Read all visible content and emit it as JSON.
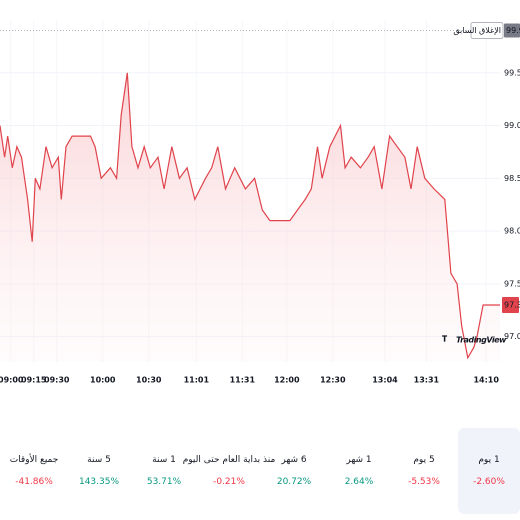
{
  "chart_data": {
    "type": "line",
    "x": [
      533,
      536,
      538,
      541,
      544,
      547,
      551,
      554,
      556,
      559,
      563,
      567,
      571,
      573,
      576,
      580,
      585,
      592,
      595,
      599,
      605,
      609,
      612,
      616,
      619,
      623,
      627,
      631,
      636,
      640,
      645,
      650,
      655,
      660,
      667,
      671,
      675,
      680,
      686,
      693,
      699,
      704,
      709,
      714,
      722,
      727,
      732,
      736,
      740,
      743,
      748,
      755,
      758,
      762,
      768,
      773,
      777,
      782,
      787,
      792,
      797,
      801,
      805,
      810,
      816,
      823,
      827,
      831,
      834,
      838,
      842,
      844,
      848,
      859
    ],
    "series": [
      {
        "color": "#e0434b",
        "values": [
          99.0,
          98.7,
          98.9,
          98.6,
          98.8,
          98.7,
          98.3,
          97.9,
          98.5,
          98.4,
          98.8,
          98.6,
          98.7,
          98.3,
          98.8,
          98.9,
          98.9,
          98.9,
          98.8,
          98.5,
          98.6,
          98.5,
          99.1,
          99.5,
          98.8,
          98.6,
          98.8,
          98.6,
          98.7,
          98.4,
          98.8,
          98.5,
          98.6,
          98.3,
          98.5,
          98.6,
          98.8,
          98.4,
          98.6,
          98.4,
          98.5,
          98.2,
          98.1,
          98.1,
          98.1,
          98.2,
          98.3,
          98.4,
          98.8,
          98.5,
          98.8,
          99.0,
          98.6,
          98.7,
          98.6,
          98.7,
          98.8,
          98.4,
          98.9,
          98.8,
          98.7,
          98.4,
          98.8,
          98.5,
          98.4,
          98.3,
          97.6,
          97.5,
          97.1,
          96.8,
          96.9,
          97.0,
          97.3,
          97.3
        ]
      }
    ],
    "xlim": [
      533,
      859
    ],
    "xticks": [
      {
        "value": 540,
        "label": "09:00"
      },
      {
        "value": 555,
        "label": "09:15"
      },
      {
        "value": 570,
        "label": "09:30"
      },
      {
        "value": 600,
        "label": "10:00"
      },
      {
        "value": 630,
        "label": "10:30"
      },
      {
        "value": 661,
        "label": "11:01"
      },
      {
        "value": 691,
        "label": "11:31"
      },
      {
        "value": 720,
        "label": "12:00"
      },
      {
        "value": 750,
        "label": "12:30"
      },
      {
        "value": 784,
        "label": "13:04"
      },
      {
        "value": 811,
        "label": "13:31"
      },
      {
        "value": 850,
        "label": "14:10"
      }
    ],
    "ylim": [
      96.76,
      100.0
    ],
    "yticks": [
      {
        "value": 97,
        "label": "97.0"
      },
      97.5,
      {
        "value": 98,
        "label": "98.0"
      },
      98.5,
      {
        "value": 99,
        "label": "99.0"
      },
      99.5
    ],
    "grid": true,
    "previous_close": {
      "label": "الإغلاق السابق",
      "value": 99.9
    },
    "last_value": 97.3,
    "logo": "TradingView"
  },
  "periods": [
    {
      "label": "1 يوم",
      "change": "-2.60%",
      "selected": true
    },
    {
      "label": "5 يوم",
      "change": "-5.53%"
    },
    {
      "label": "1 شهر",
      "change": "2.64%"
    },
    {
      "label": "6 شهر",
      "change": "20.72%"
    },
    {
      "label": "منذ بداية العام حتى اليوم",
      "change": "-0.21%"
    },
    {
      "label": "1 سنة",
      "change": "53.71%"
    },
    {
      "label": "5 سنة",
      "change": "143.35%"
    },
    {
      "label": "جميع الأوقات",
      "change": "-41.86%"
    }
  ]
}
